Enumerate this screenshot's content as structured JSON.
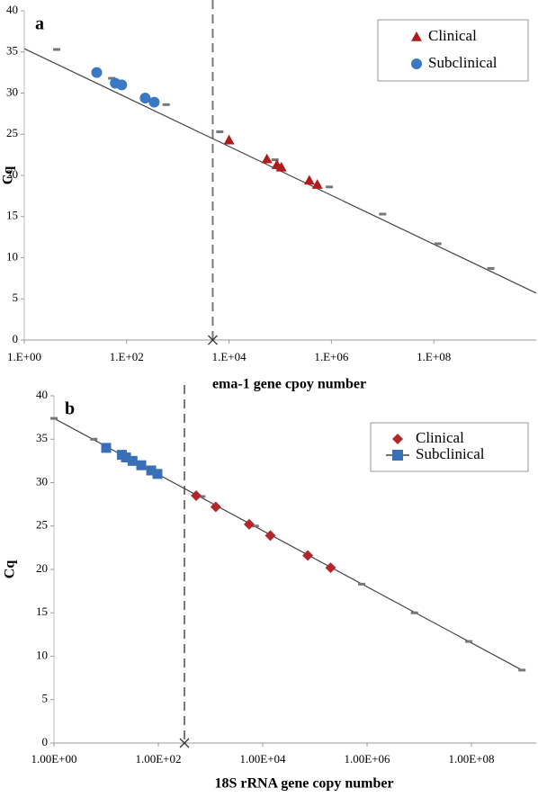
{
  "chart_data": [
    {
      "type": "scatter",
      "panel_label": "a",
      "xlabel": "ema-1 gene cpoy number",
      "ylabel": "Cq",
      "xscale": "log",
      "xlim": [
        1,
        10000000000
      ],
      "ylim": [
        0,
        40
      ],
      "xticks": [
        {
          "value": 1,
          "label": "1.E+00"
        },
        {
          "value": 100,
          "label": "1.E+02"
        },
        {
          "value": 10000,
          "label": "1.E+04"
        },
        {
          "value": 1000000,
          "label": "1.E+06"
        },
        {
          "value": 100000000,
          "label": "1.E+08"
        }
      ],
      "yticks": [
        0,
        5,
        10,
        15,
        20,
        25,
        30,
        35,
        40
      ],
      "cutoff_x": 4800,
      "trendline": {
        "x": [
          1,
          10000000000
        ],
        "values": [
          35.4,
          5.7
        ]
      },
      "standards": {
        "x": [
          4.3,
          51,
          590,
          6600,
          79000,
          910000,
          10000000,
          120000000,
          1300000000
        ],
        "values": [
          35.3,
          31.8,
          28.6,
          25.3,
          21.9,
          18.6,
          15.3,
          11.7,
          8.7
        ]
      },
      "legend": "upper right",
      "series": [
        {
          "name": "Clinical",
          "color": "#b01c1c",
          "marker": "triangle",
          "x": [
            10000,
            55000,
            86000,
            105000,
            370000,
            530000
          ],
          "values": [
            24.3,
            22.0,
            21.3,
            21.0,
            19.4,
            18.9
          ]
        },
        {
          "name": "Subclinical",
          "color": "#3a78c2",
          "marker": "circle",
          "x": [
            26,
            60,
            80,
            230,
            345
          ],
          "values": [
            32.5,
            31.2,
            31.0,
            29.4,
            28.9
          ]
        }
      ]
    },
    {
      "type": "scatter",
      "panel_label": "b",
      "xlabel": "18S rRNA gene copy number",
      "ylabel": "Cq",
      "xscale": "log",
      "xlim": [
        1,
        1740000000
      ],
      "ylim": [
        0,
        40
      ],
      "xticks": [
        {
          "value": 1,
          "label": "1.00E+00"
        },
        {
          "value": 100,
          "label": "1.00E+02"
        },
        {
          "value": 10000,
          "label": "1.00E+04"
        },
        {
          "value": 1000000,
          "label": "1.00E+06"
        },
        {
          "value": 100000000,
          "label": "1.00E+08"
        }
      ],
      "yticks": [
        0,
        5,
        10,
        15,
        20,
        25,
        30,
        35,
        40
      ],
      "cutoff_x": 316,
      "trendline": {
        "x": [
          1,
          930000000
        ],
        "values": [
          37.4,
          8.4
        ]
      },
      "standards": {
        "x": [
          1,
          5.8,
          680,
          7200,
          790000,
          8100000,
          89000000,
          930000000
        ],
        "values": [
          37.4,
          35.0,
          28.4,
          25.0,
          18.3,
          15.0,
          11.7,
          8.4
        ]
      },
      "legend": "upper right",
      "series": [
        {
          "name": "Clinical",
          "color": "#b0282c",
          "marker": "diamond",
          "x": [
            530,
            1260,
            5500,
            14000,
            73000,
            200000
          ],
          "values": [
            28.5,
            27.2,
            25.2,
            23.9,
            21.6,
            20.2
          ]
        },
        {
          "name": "Subclinical",
          "color": "#3a6fb8",
          "marker": "square",
          "legend_line": true,
          "x": [
            10,
            20,
            24,
            32,
            47,
            73,
            96
          ],
          "values": [
            34.0,
            33.2,
            32.9,
            32.5,
            32.0,
            31.4,
            31.0
          ]
        }
      ]
    }
  ]
}
